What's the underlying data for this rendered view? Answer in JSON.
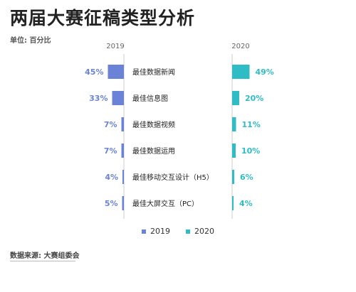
{
  "title": "两届大赛征稿类型分析",
  "unit": "单位: 百分比",
  "source": "数据来源: 大赛组委会",
  "colors": {
    "y2019": "#6b83d6",
    "y2020": "#2fbcc4",
    "axis": "#cccccc"
  },
  "chart_data": {
    "type": "bar",
    "categories": [
      "最佳数据新闻",
      "最佳信息图",
      "最佳数据视频",
      "最佳数据运用",
      "最佳移动交互设计（H5）",
      "最佳大屏交互（PC）"
    ],
    "series": [
      {
        "name": "2019",
        "values": [
          45,
          33,
          7,
          7,
          4,
          5
        ],
        "labels": [
          "45%",
          "33%",
          "7%",
          "7%",
          "4%",
          "5%"
        ]
      },
      {
        "name": "2020",
        "values": [
          49,
          20,
          11,
          10,
          6,
          4
        ],
        "labels": [
          "49%",
          "20%",
          "11%",
          "10%",
          "6%",
          "4%"
        ]
      }
    ],
    "unit": "%"
  }
}
